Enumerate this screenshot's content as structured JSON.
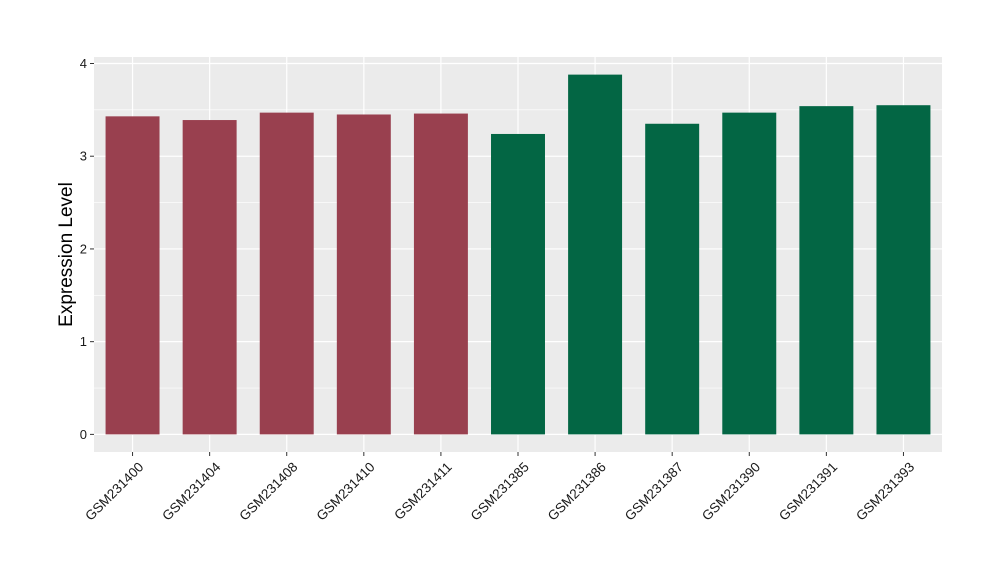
{
  "chart_data": {
    "type": "bar",
    "title": "",
    "xlabel": "",
    "ylabel": "Expression Level",
    "ylim": [
      -0.19,
      4.07
    ],
    "yticks": [
      0,
      1,
      2,
      3,
      4
    ],
    "grid": true,
    "legend": "none",
    "categories": [
      "GSM231400",
      "GSM231404",
      "GSM231408",
      "GSM231410",
      "GSM231411",
      "GSM231385",
      "GSM231386",
      "GSM231387",
      "GSM231390",
      "GSM231391",
      "GSM231393"
    ],
    "values": [
      3.43,
      3.39,
      3.47,
      3.45,
      3.46,
      3.24,
      3.88,
      3.35,
      3.47,
      3.54,
      3.55
    ],
    "bar_colors": [
      "#99404F",
      "#99404F",
      "#99404F",
      "#99404F",
      "#99404F",
      "#036644",
      "#036644",
      "#036644",
      "#036644",
      "#036644",
      "#036644"
    ],
    "panel_background": "#EBEBEB",
    "grid_color": "#FFFFFF"
  }
}
